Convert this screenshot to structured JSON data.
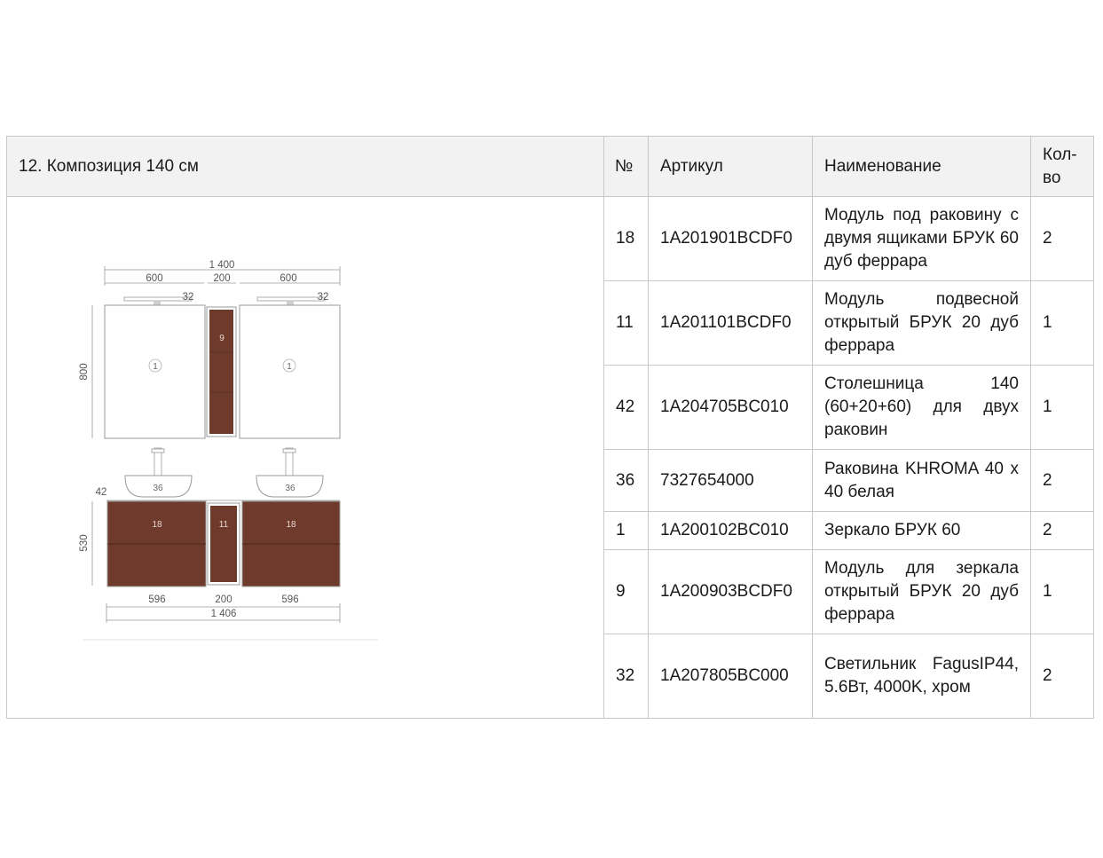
{
  "composition_title": "12. Композиция 140 см",
  "headers": {
    "number": "№",
    "article": "Артикул",
    "name": "Наименование",
    "qty": "Кол-во"
  },
  "rows": [
    {
      "number": "18",
      "article": "1A201901BCDF0",
      "name": "Модуль под раковину с двумя ящиками БРУК 60 дуб феррара",
      "qty": "2"
    },
    {
      "number": "11",
      "article": "1A201101BCDF0",
      "name": "Модуль подвесной открытый БРУК 20 дуб феррара",
      "qty": "1"
    },
    {
      "number": "42",
      "article": "1A204705BC010",
      "name": "Столешница 140 (60+20+60) для двух раковин",
      "qty": "1"
    },
    {
      "number": "36",
      "article": "7327654000",
      "name": "Раковина KHROMA 40 x 40 белая",
      "qty": "2"
    },
    {
      "number": "1",
      "article": "1A200102BC010",
      "name": "Зеркало БРУК 60",
      "qty": "2"
    },
    {
      "number": "9",
      "article": "1A200903BCDF0",
      "name": "Модуль для зеркала открытый БРУК 20 дуб феррара",
      "qty": "1"
    },
    {
      "number": "32",
      "article": "1A207805BC000",
      "name": "Светильник FagusIP44, 5.6Вт, 4000K, хром",
      "qty": "2"
    }
  ],
  "drawing": {
    "dims": {
      "total_top": "1 400",
      "mirror_left": "600",
      "shelf_top": "200",
      "mirror_right": "600",
      "lamp_left": "32",
      "lamp_right": "32",
      "height_top": "800",
      "top_thickness": "42",
      "height_bottom": "530",
      "base_left": "596",
      "base_mid": "200",
      "base_right": "596",
      "total_bottom": "1 406"
    },
    "marks": {
      "mirror_left": "1",
      "shelf_top": "9",
      "mirror_right": "1",
      "sink_left": "36",
      "sink_right": "36",
      "base_left": "18",
      "base_mid": "11",
      "base_right": "18"
    },
    "colors": {
      "wood": "#6e3a2c",
      "line": "#9a9a9a",
      "header_bg": "#f2f2f2"
    }
  }
}
